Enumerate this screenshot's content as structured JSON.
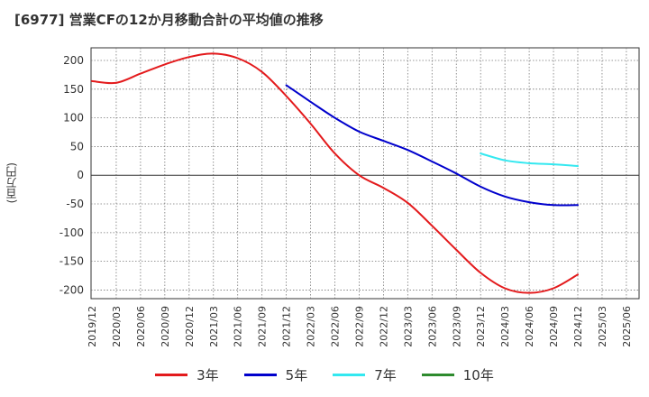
{
  "title": "[6977]  営業CFの12か月移動合計の平均値の推移",
  "y_unit_label": "(百万円)",
  "colors": {
    "3年": "#e31a1c",
    "5年": "#0000cc",
    "7年": "#33e8f0",
    "10年": "#2e8b2e"
  },
  "legend": [
    {
      "label": "3年",
      "color": "#e31a1c"
    },
    {
      "label": "5年",
      "color": "#0000cc"
    },
    {
      "label": "7年",
      "color": "#33e8f0"
    },
    {
      "label": "10年",
      "color": "#2e8b2e"
    }
  ],
  "chart_data": {
    "type": "line",
    "title": "[6977]  営業CFの12か月移動合計の平均値の推移",
    "ylabel": "(百万円)",
    "xlabel": "",
    "ylim": [
      -215,
      222
    ],
    "yticks": [
      200,
      150,
      100,
      50,
      0,
      -50,
      -100,
      -150,
      -200
    ],
    "x_ticks": [
      "2019/12",
      "2020/03",
      "2020/06",
      "2020/09",
      "2020/12",
      "2021/03",
      "2021/06",
      "2021/09",
      "2021/12",
      "2022/03",
      "2022/06",
      "2022/09",
      "2022/12",
      "2023/03",
      "2023/06",
      "2023/09",
      "2023/12",
      "2024/03",
      "2024/06",
      "2024/09",
      "2024/12",
      "2025/03",
      "2025/06"
    ],
    "grid": true,
    "legend_position": "bottom",
    "series": [
      {
        "name": "3年",
        "color": "#e31a1c",
        "x": [
          "2019/12",
          "2020/03",
          "2020/06",
          "2020/09",
          "2020/12",
          "2021/03",
          "2021/06",
          "2021/09",
          "2021/12",
          "2022/03",
          "2022/06",
          "2022/09",
          "2022/12",
          "2023/03",
          "2023/06",
          "2023/09",
          "2023/12",
          "2024/03",
          "2024/06",
          "2024/09",
          "2024/12"
        ],
        "values": [
          164,
          161,
          177,
          193,
          206,
          212,
          204,
          180,
          138,
          90,
          38,
          0,
          -22,
          -48,
          -88,
          -130,
          -170,
          -197,
          -205,
          -197,
          -173
        ]
      },
      {
        "name": "5年",
        "color": "#0000cc",
        "x": [
          "2021/12",
          "2022/03",
          "2022/06",
          "2022/09",
          "2022/12",
          "2023/03",
          "2023/06",
          "2023/09",
          "2023/12",
          "2024/03",
          "2024/06",
          "2024/09",
          "2024/12"
        ],
        "values": [
          157,
          128,
          100,
          76,
          60,
          44,
          24,
          3,
          -20,
          -37,
          -47,
          -52,
          -52
        ]
      },
      {
        "name": "7年",
        "color": "#33e8f0",
        "x": [
          "2023/12",
          "2024/03",
          "2024/06",
          "2024/09",
          "2024/12"
        ],
        "values": [
          38,
          26,
          21,
          19,
          16
        ]
      },
      {
        "name": "10年",
        "color": "#2e8b2e",
        "x": [],
        "values": []
      }
    ]
  }
}
